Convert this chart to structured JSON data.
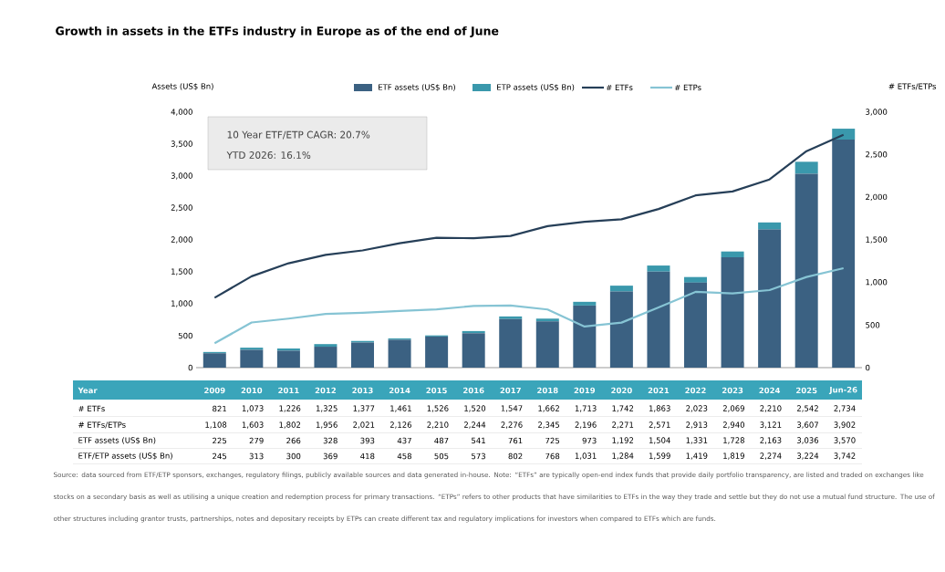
{
  "chart_data": {
    "type": "bar",
    "title": "Growth in assets in the ETFs industry in Europe as of the end of June",
    "categories": [
      "2009",
      "2010",
      "2011",
      "2012",
      "2013",
      "2014",
      "2015",
      "2016",
      "2017",
      "2018",
      "2019",
      "2020",
      "2021",
      "2022",
      "2023",
      "2024",
      "2025",
      "Jun-26"
    ],
    "stacked": true,
    "series": [
      {
        "name": "ETF assets (US$ Bn)",
        "type": "bar",
        "color": "#3b6182",
        "values": [
          225,
          279,
          266,
          328,
          393,
          437,
          487,
          541,
          761,
          725,
          973,
          1192,
          1504,
          1331,
          1728,
          2163,
          3036,
          3570
        ],
        "value_labels": [
          "225",
          "279",
          "266",
          "328",
          "393",
          "437",
          "487",
          "541",
          "761",
          "725",
          "973",
          "1,192",
          "1,504",
          "1,331",
          "1,728",
          "2,163",
          "3,036",
          "3,570"
        ]
      },
      {
        "name": "ETP assets (US$ Bn)",
        "type": "bar",
        "color": "#3a98ac",
        "values": [
          20,
          34,
          34,
          41,
          25,
          21,
          18,
          32,
          41,
          43,
          58,
          92,
          95,
          88,
          91,
          111,
          188,
          172
        ]
      },
      {
        "name": "# ETFs",
        "type": "line",
        "axis": "y2",
        "color": "#263f58",
        "values": [
          821,
          1073,
          1226,
          1325,
          1377,
          1461,
          1526,
          1520,
          1547,
          1662,
          1713,
          1742,
          1863,
          2023,
          2069,
          2210,
          2542,
          2734
        ],
        "value_labels": [
          "821",
          "1,073",
          "1,226",
          "1,325",
          "1,377",
          "1,461",
          "1,526",
          "1,520",
          "1,547",
          "1,662",
          "1,713",
          "1,742",
          "1,863",
          "2,023",
          "2,069",
          "2,210",
          "2,542",
          "2,734"
        ]
      },
      {
        "name": "# ETPs",
        "type": "line",
        "axis": "y2",
        "color": "#86c4d4",
        "values": [
          287,
          530,
          576,
          631,
          644,
          665,
          684,
          724,
          729,
          683,
          483,
          529,
          708,
          890,
          871,
          911,
          1065,
          1168
        ]
      }
    ],
    "ylabel": "Assets (US$ Bn)",
    "y2label": "# ETFs/ETPs",
    "ylim": [
      0,
      4000
    ],
    "yticks": [
      0,
      500,
      {
        "value": 1000,
        "label": "1,000"
      },
      {
        "value": 1500,
        "label": "1,500"
      },
      {
        "value": 2000,
        "label": "2,000"
      },
      {
        "value": 2500,
        "label": "2,500"
      },
      {
        "value": 3000,
        "label": "3,000"
      },
      {
        "value": 3500,
        "label": "3,500"
      },
      {
        "value": 4000,
        "label": "4,000"
      }
    ],
    "y2lim": [
      0,
      3000
    ],
    "y2ticks": [
      0,
      500,
      {
        "value": 1000,
        "label": "1,000"
      },
      {
        "value": 1500,
        "label": "1,500"
      },
      {
        "value": 2000,
        "label": "2,000"
      },
      {
        "value": 2500,
        "label": "2,500"
      },
      {
        "value": 3000,
        "label": "3,000"
      }
    ],
    "legend": "top",
    "marker": "none",
    "line_style": "solid",
    "grid": false,
    "annotations": [
      "10 Year ETF/ETP CAGR: 20.7%",
      "YTD 2026: 16.1%",
      "Source: data sourced from ETF/ETP sponsors, exchanges, regulatory filings, publicly available sources and data generated in-house. Note: “ETFs” are typically open-end index funds that provide daily portfolio transparency, are listed and traded on exchanges like stocks on a secondary basis as well as utilising a unique creation and redemption process for primary transactions. “ETPs” refers to other products that have similarities to ETFs in the way they trade and settle but they do not use a mutual fund structure. The use of other structures including grantor trusts, partnerships, notes and depositary receipts by ETPs can create different tax and regulatory implications for investors when compared to ETFs which are funds.",
      "Year",
      "# ETFs/ETPs",
      "ETF/ETP assets (US$ Bn)",
      "1,108",
      "1,603",
      "1,802",
      "1,956",
      "2,021",
      "2,126",
      "2,210",
      "2,244",
      "2,276",
      "2,345",
      "2,196",
      "2,271",
      "2,571",
      "2,913",
      "2,940",
      "3,121",
      "3,607",
      "3,902",
      "245",
      "313",
      "300",
      "369",
      "418",
      "458",
      "505",
      "573",
      "802",
      "768",
      "1,031",
      "1,284",
      "1,599",
      "1,419",
      "1,819",
      "2,274",
      "3,224",
      "3,742"
    ]
  }
}
